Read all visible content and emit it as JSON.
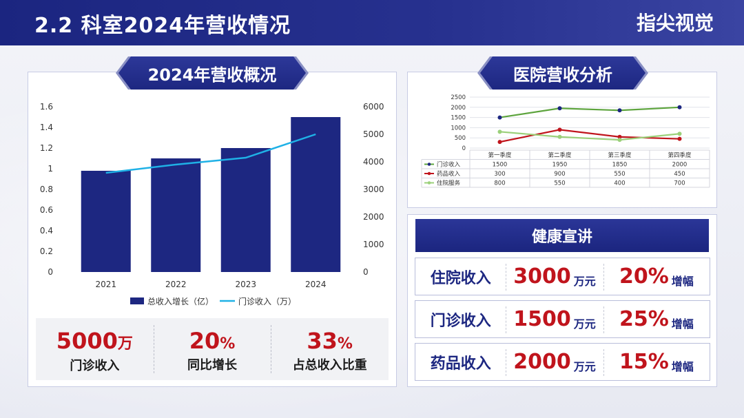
{
  "header": {
    "title": "2.2 科室2024年营收情况",
    "brand": "指尖视觉"
  },
  "left_panel": {
    "ribbon": "2024年营收概况",
    "stats": [
      {
        "value": "5000",
        "unit": "万",
        "label": "门诊收入"
      },
      {
        "value": "20",
        "unit": "%",
        "label": "同比增长"
      },
      {
        "value": "33",
        "unit": "%",
        "label": "占总收入比重"
      }
    ]
  },
  "right_top": {
    "ribbon": "医院营收分析"
  },
  "right_bottom": {
    "title": "健康宣讲",
    "rows": [
      {
        "name": "住院收入",
        "amount": "3000",
        "amount_unit": "万元",
        "pct": "20%",
        "pct_unit": "增幅"
      },
      {
        "name": "门诊收入",
        "amount": "1500",
        "amount_unit": "万元",
        "pct": "25%",
        "pct_unit": "增幅"
      },
      {
        "name": "药品收入",
        "amount": "2000",
        "amount_unit": "万元",
        "pct": "15%",
        "pct_unit": "增幅"
      }
    ]
  },
  "chart_data": [
    {
      "type": "bar",
      "categories": [
        "2021",
        "2022",
        "2023",
        "2024"
      ],
      "series": [
        {
          "name": "总收入增长（亿）",
          "type": "bar",
          "axis": "left",
          "values": [
            0.98,
            1.1,
            1.2,
            1.5
          ],
          "color": "#1d2781"
        },
        {
          "name": "门诊收入（万）",
          "type": "line",
          "axis": "right",
          "values": [
            3600,
            3900,
            4150,
            5000
          ],
          "color": "#1fb1e6"
        }
      ],
      "ylim": [
        0,
        1.6
      ],
      "yticks": [
        "0",
        "0.2",
        "0.4",
        "0.6",
        "0.8",
        "1",
        "1.2",
        "1.4",
        "1.6"
      ],
      "y2lim": [
        0,
        6000
      ],
      "y2ticks": [
        "0",
        "1000",
        "2000",
        "3000",
        "4000",
        "5000",
        "6000"
      ],
      "legend": "bottom"
    },
    {
      "type": "line",
      "categories": [
        "第一季度",
        "第二季度",
        "第三季度",
        "第四季度"
      ],
      "series": [
        {
          "name": "门诊收入",
          "values": [
            1500,
            1950,
            1850,
            2000
          ],
          "color": "#5da43d"
        },
        {
          "name": "药品收入",
          "values": [
            300,
            900,
            550,
            450
          ],
          "color": "#c0141c"
        },
        {
          "name": "住院服务",
          "values": [
            800,
            550,
            400,
            700
          ],
          "color": "#9bd07a"
        }
      ],
      "ylim": [
        0,
        2500
      ],
      "yticks": [
        "0",
        "500",
        "1000",
        "1500",
        "2000",
        "2500"
      ],
      "data_table": true
    }
  ]
}
